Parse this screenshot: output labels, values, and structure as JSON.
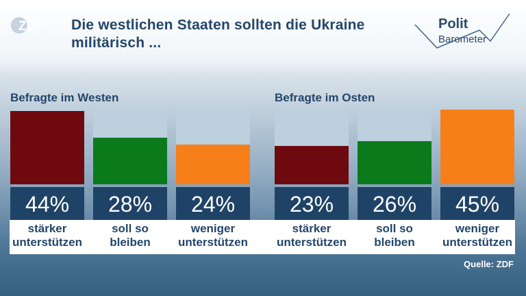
{
  "title": "Die westlichen Staaten sollten die Ukraine militärisch ...",
  "logo": "ZDF",
  "brand": {
    "polit": "Polit",
    "barometer": "Barometer"
  },
  "source": "Quelle: ZDF",
  "colors": {
    "staerker": "#6e0a0f",
    "soll_so_bleiben": "#0b7a1b",
    "weniger": "#f77f19",
    "bar_background": "#bcd0de",
    "value_box": "#1f4366",
    "text": "#24466a"
  },
  "chart_data": [
    {
      "type": "bar",
      "title": "Befragte im Westen",
      "categories": [
        "stärker unterstützen",
        "soll so bleiben",
        "weniger unterstützen"
      ],
      "values": [
        44,
        28,
        24
      ],
      "value_labels": [
        "44%",
        "28%",
        "24%"
      ],
      "ylim": [
        0,
        45
      ]
    },
    {
      "type": "bar",
      "title": "Befragte im Osten",
      "categories": [
        "stärker unterstützen",
        "soll so bleiben",
        "weniger unterstützen"
      ],
      "values": [
        23,
        26,
        45
      ],
      "value_labels": [
        "23%",
        "26%",
        "45%"
      ],
      "ylim": [
        0,
        45
      ]
    }
  ]
}
